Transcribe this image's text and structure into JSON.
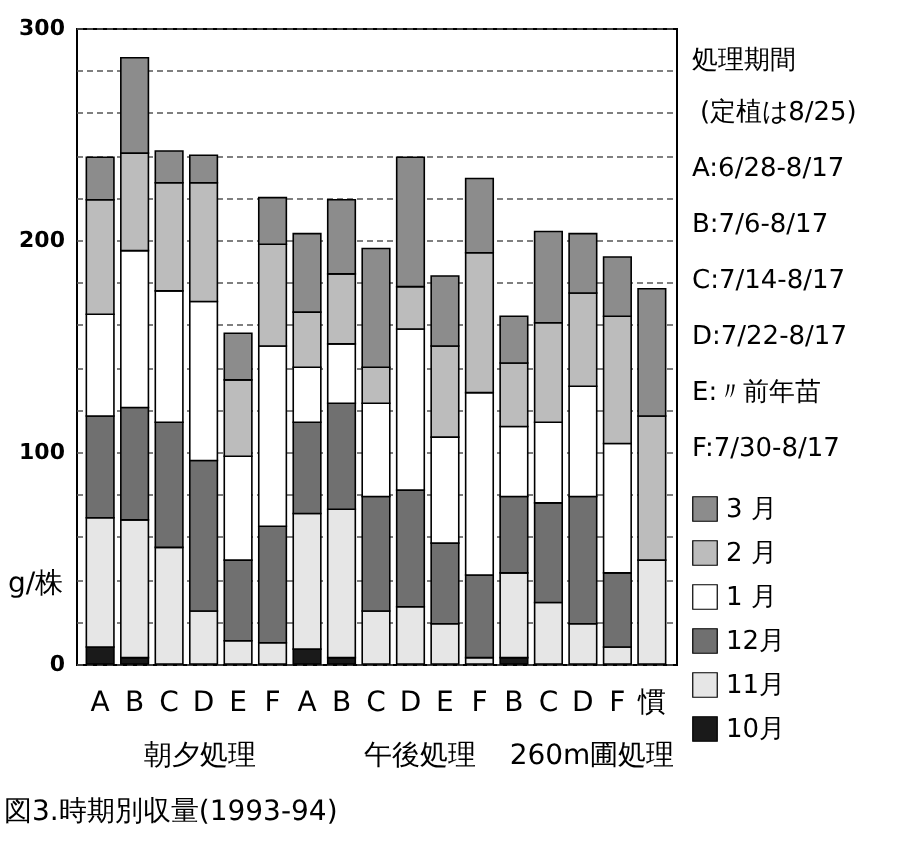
{
  "chart_data": {
    "type": "bar",
    "stacked": true,
    "title": "図3.時期別収量(1993-94)",
    "ylabel": "g/株",
    "legend_title": "処理期間",
    "annotations": [
      "(定植は8/25)",
      "A:6/28-8/17",
      "B:7/6-8/17",
      "C:7/14-8/17",
      "D:7/22-8/17",
      "E:〃前年苗",
      "F:7/30-8/17",
      "朝夕処理",
      "午後処理",
      "260m圃処理"
    ],
    "categories": [
      "A",
      "B",
      "C",
      "D",
      "E",
      "F",
      "A",
      "B",
      "C",
      "D",
      "E",
      "F",
      "B",
      "C",
      "D",
      "F",
      "慣"
    ],
    "series": [
      {
        "name": "10月",
        "color": "#1a1a1a",
        "values": [
          8,
          3,
          0,
          0,
          0,
          0,
          7,
          3,
          0,
          0,
          0,
          0,
          3,
          0,
          0,
          0,
          0
        ]
      },
      {
        "name": "11月",
        "color": "#e6e6e6",
        "values": [
          61,
          65,
          55,
          25,
          11,
          10,
          64,
          70,
          25,
          27,
          19,
          3,
          40,
          29,
          19,
          8,
          49
        ]
      },
      {
        "name": "12月",
        "color": "#707070",
        "values": [
          48,
          53,
          59,
          71,
          38,
          55,
          43,
          50,
          54,
          55,
          38,
          39,
          36,
          47,
          60,
          35,
          0
        ]
      },
      {
        "name": "1 月",
        "color": "#ffffff",
        "values": [
          48,
          74,
          62,
          75,
          49,
          85,
          26,
          28,
          44,
          76,
          50,
          86,
          33,
          38,
          52,
          61,
          0
        ]
      },
      {
        "name": "2 月",
        "color": "#bcbcbc",
        "values": [
          54,
          46,
          51,
          56,
          36,
          48,
          26,
          33,
          17,
          20,
          43,
          66,
          30,
          47,
          44,
          60,
          68
        ]
      },
      {
        "name": "3 月",
        "color": "#8c8c8c",
        "values": [
          20,
          45,
          15,
          13,
          22,
          22,
          37,
          35,
          56,
          61,
          33,
          35,
          22,
          43,
          28,
          28,
          60
        ]
      }
    ],
    "ylim": [
      0,
      300
    ],
    "yticks": [
      0,
      {
        "value": 20,
        "label": null
      },
      {
        "value": 40,
        "label": null
      },
      {
        "value": 60,
        "label": null
      },
      {
        "value": 80,
        "label": null
      },
      100,
      {
        "value": 120,
        "label": null
      },
      {
        "value": 140,
        "label": null
      },
      {
        "value": 160,
        "label": null
      },
      {
        "value": 180,
        "label": null
      },
      200,
      {
        "value": 220,
        "label": null
      },
      {
        "value": 240,
        "label": null
      },
      {
        "value": 260,
        "label": null
      },
      {
        "value": 280,
        "label": null
      },
      300
    ],
    "grid": "y",
    "legend": "right"
  }
}
